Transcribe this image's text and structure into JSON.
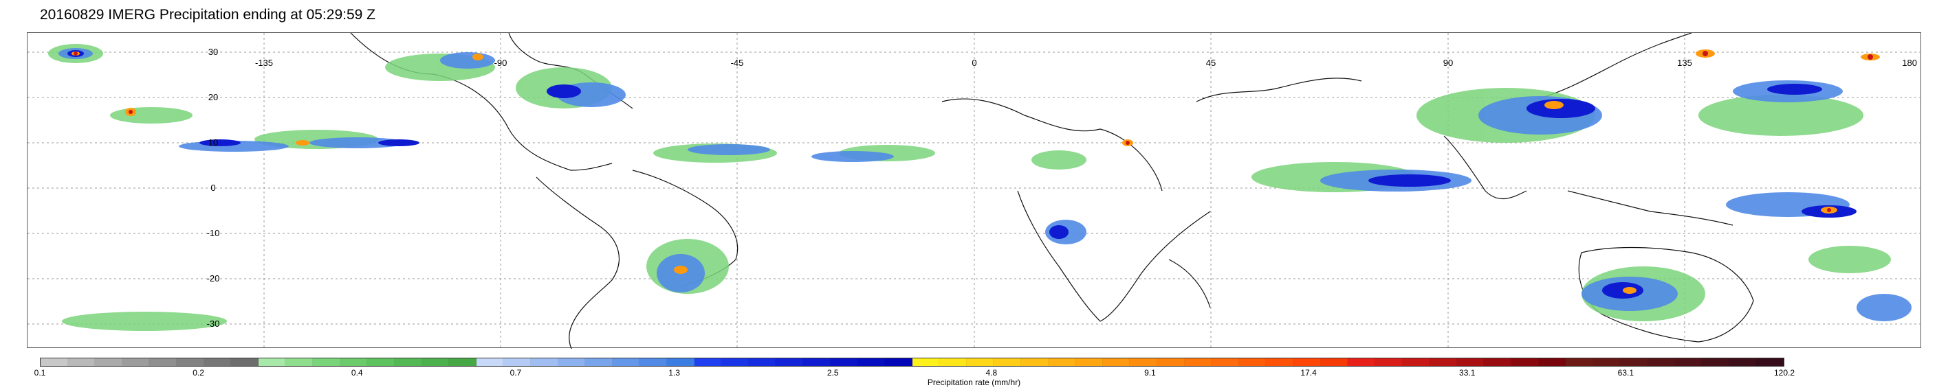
{
  "title": "20160829 IMERG Precipitation ending at 05:29:59 Z",
  "map": {
    "latitude_labels": [
      "30",
      "20",
      "10",
      "0",
      "-10",
      "-20",
      "-30"
    ],
    "longitude_labels": [
      "-135",
      "-90",
      "-45",
      "0",
      "45",
      "90",
      "135",
      "180"
    ],
    "gridlines": true
  },
  "colorbar": {
    "label": "Precipitation rate (mm/hr)",
    "tick_labels": [
      "0.1",
      "0.2",
      "0.4",
      "0.7",
      "1.3",
      "2.5",
      "4.8",
      "9.1",
      "17.4",
      "33.1",
      "63.1",
      "120.2"
    ],
    "colors": [
      "#c8c8c8",
      "#b9b9b9",
      "#aaaaaa",
      "#9c9c9c",
      "#8f8f8f",
      "#828282",
      "#777777",
      "#6d6d6d",
      "#a8e8a8",
      "#8ede8e",
      "#7ad47a",
      "#6bcb6b",
      "#5ec25e",
      "#54b954",
      "#4cb04c",
      "#45a845",
      "#c8d8f8",
      "#b4cbf5",
      "#a0bef2",
      "#8cb1ef",
      "#78a4ec",
      "#6497e9",
      "#508ae6",
      "#3c7de3",
      "#1f3ff0",
      "#1a35e8",
      "#162ce0",
      "#1223d8",
      "#0e1bd0",
      "#0a13c8",
      "#060cc0",
      "#0305b8",
      "#fff21a",
      "#ffe619",
      "#ffd917",
      "#ffcc16",
      "#ffbf14",
      "#ffb213",
      "#ffa611",
      "#ff9a10",
      "#ff8e0e",
      "#ff820d",
      "#ff760b",
      "#ff6a0a",
      "#ff5e09",
      "#ff5207",
      "#ff4606",
      "#f53a05",
      "#e8201a",
      "#d81c18",
      "#c81816",
      "#b81414",
      "#a81012",
      "#980c10",
      "#88080e",
      "#78050c",
      "#6e1a14",
      "#661815",
      "#5e1616",
      "#561417",
      "#4e1218",
      "#461019",
      "#3e0e1a",
      "#360c1b"
    ]
  }
}
